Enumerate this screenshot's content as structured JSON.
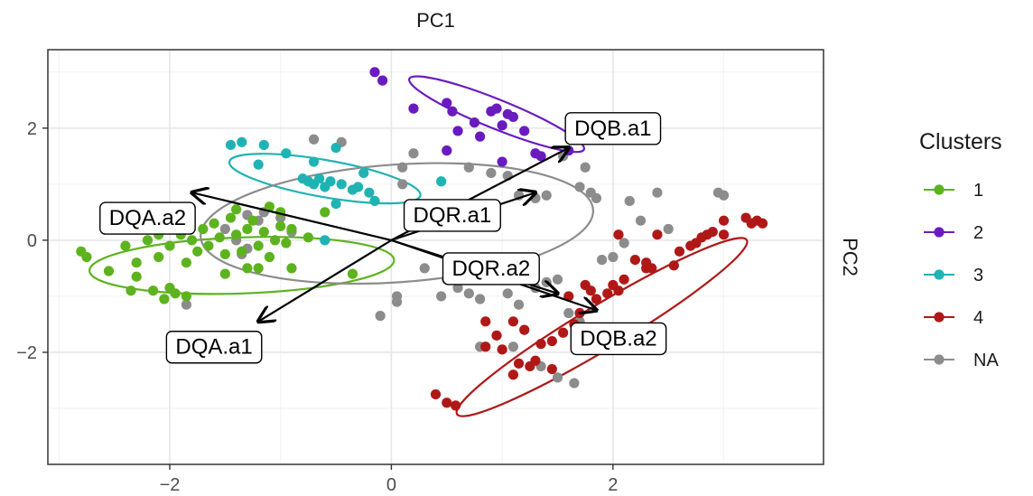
{
  "chart_data": {
    "type": "scatter",
    "title": "",
    "xlabel": "PC1",
    "ylabel": "PC2",
    "x_axis_position": "top",
    "y_axis_title_position": "right",
    "xlim": [
      -3.1,
      3.9
    ],
    "ylim": [
      -4.0,
      3.4
    ],
    "x_ticks": [
      -2,
      0,
      2
    ],
    "x_tick_labels": [
      "−2",
      "0",
      "2"
    ],
    "y_ticks": [
      -2,
      0,
      2
    ],
    "y_tick_labels": [
      "−2",
      "0",
      "2"
    ],
    "grid": true,
    "legend": {
      "title": "Clusters",
      "position": "right",
      "entries": [
        "1",
        "2",
        "3",
        "4",
        "NA"
      ]
    },
    "colors": {
      "1": "#5db31e",
      "2": "#6a1bc0",
      "3": "#1fb3b3",
      "4": "#b01818",
      "NA": "#8c8c8c"
    },
    "series": [
      {
        "name": "1",
        "points": [
          [
            -2.8,
            -0.2
          ],
          [
            -2.75,
            -0.3
          ],
          [
            -2.55,
            -0.55
          ],
          [
            -2.4,
            -0.1
          ],
          [
            -2.2,
            0.0
          ],
          [
            -2.1,
            0.1
          ],
          [
            -2.3,
            -0.4
          ],
          [
            -2.1,
            -0.3
          ],
          [
            -2.0,
            -0.1
          ],
          [
            -1.9,
            0.1
          ],
          [
            -1.85,
            -0.4
          ],
          [
            -1.8,
            0.0
          ],
          [
            -1.75,
            -0.2
          ],
          [
            -1.7,
            0.2
          ],
          [
            -1.65,
            -0.1
          ],
          [
            -1.6,
            0.3
          ],
          [
            -1.55,
            0.05
          ],
          [
            -1.5,
            -0.25
          ],
          [
            -1.45,
            0.4
          ],
          [
            -1.4,
            0.1
          ],
          [
            -1.35,
            -0.2
          ],
          [
            -1.3,
            0.2
          ],
          [
            -1.25,
            0.35
          ],
          [
            -1.2,
            -0.1
          ],
          [
            -1.15,
            0.15
          ],
          [
            -1.1,
            -0.3
          ],
          [
            -1.05,
            0.0
          ],
          [
            -1.0,
            0.25
          ],
          [
            -0.95,
            -0.05
          ],
          [
            -0.9,
            0.2
          ],
          [
            -1.0,
            0.5
          ],
          [
            -1.1,
            0.6
          ],
          [
            -1.4,
            0.55
          ],
          [
            -1.3,
            -0.5
          ],
          [
            -1.5,
            -0.6
          ],
          [
            -2.35,
            -0.9
          ],
          [
            -2.3,
            -0.65
          ],
          [
            -2.15,
            -0.9
          ],
          [
            -2.05,
            -1.05
          ],
          [
            -1.95,
            -0.95
          ],
          [
            -1.85,
            -1.0
          ],
          [
            -2.0,
            -0.85
          ],
          [
            -0.75,
            0.05
          ],
          [
            -0.35,
            -0.6
          ],
          [
            -0.9,
            -0.5
          ],
          [
            -1.2,
            -0.5
          ],
          [
            -0.6,
            0.5
          ]
        ]
      },
      {
        "name": "2",
        "points": [
          [
            -0.15,
            3.0
          ],
          [
            -0.08,
            2.85
          ],
          [
            0.2,
            2.35
          ],
          [
            0.5,
            2.45
          ],
          [
            0.55,
            2.3
          ],
          [
            0.6,
            1.95
          ],
          [
            0.75,
            2.1
          ],
          [
            0.9,
            2.3
          ],
          [
            0.95,
            2.35
          ],
          [
            1.0,
            2.05
          ],
          [
            1.05,
            2.25
          ],
          [
            1.1,
            2.2
          ],
          [
            1.2,
            1.95
          ],
          [
            0.8,
            1.85
          ],
          [
            1.3,
            1.55
          ],
          [
            1.35,
            1.5
          ],
          [
            1.6,
            1.6
          ],
          [
            0.5,
            1.6
          ],
          [
            1.0,
            1.4
          ]
        ]
      },
      {
        "name": "3",
        "points": [
          [
            -1.45,
            1.7
          ],
          [
            -1.35,
            1.75
          ],
          [
            -1.15,
            1.7
          ],
          [
            -0.95,
            1.55
          ],
          [
            -0.7,
            1.4
          ],
          [
            -0.5,
            1.65
          ],
          [
            -0.8,
            1.1
          ],
          [
            -0.75,
            1.05
          ],
          [
            -0.7,
            1.0
          ],
          [
            -0.65,
            1.1
          ],
          [
            -0.6,
            0.95
          ],
          [
            -0.55,
            1.05
          ],
          [
            -0.45,
            1.0
          ],
          [
            -0.35,
            0.9
          ],
          [
            -0.3,
            0.95
          ],
          [
            -0.25,
            1.2
          ],
          [
            -0.2,
            0.85
          ],
          [
            -0.15,
            0.7
          ],
          [
            0.45,
            1.05
          ],
          [
            -1.2,
            1.35
          ],
          [
            -0.5,
            0.65
          ],
          [
            -0.6,
            0.0
          ]
        ]
      },
      {
        "name": "4",
        "points": [
          [
            0.4,
            -2.75
          ],
          [
            0.5,
            -2.9
          ],
          [
            0.58,
            -2.95
          ],
          [
            0.85,
            -1.45
          ],
          [
            0.95,
            -1.7
          ],
          [
            1.0,
            -1.95
          ],
          [
            0.85,
            -1.9
          ],
          [
            1.1,
            -1.45
          ],
          [
            1.2,
            -1.6
          ],
          [
            1.25,
            -2.25
          ],
          [
            1.3,
            -2.15
          ],
          [
            1.35,
            -1.85
          ],
          [
            1.45,
            -1.8
          ],
          [
            1.55,
            -1.65
          ],
          [
            1.65,
            -1.5
          ],
          [
            1.7,
            -1.3
          ],
          [
            1.6,
            -1.0
          ],
          [
            1.75,
            -0.8
          ],
          [
            1.8,
            -0.9
          ],
          [
            1.85,
            -1.05
          ],
          [
            1.95,
            -0.95
          ],
          [
            2.0,
            -0.8
          ],
          [
            2.05,
            -0.9
          ],
          [
            2.1,
            -0.7
          ],
          [
            2.2,
            -0.35
          ],
          [
            2.3,
            -0.4
          ],
          [
            2.35,
            -0.5
          ],
          [
            2.6,
            -0.2
          ],
          [
            2.7,
            -0.1
          ],
          [
            2.8,
            0.05
          ],
          [
            2.85,
            0.1
          ],
          [
            2.9,
            0.15
          ],
          [
            3.0,
            0.1
          ],
          [
            3.2,
            0.4
          ],
          [
            3.25,
            0.3
          ],
          [
            3.3,
            0.35
          ],
          [
            3.35,
            0.3
          ],
          [
            3.0,
            0.35
          ],
          [
            2.05,
            0.1
          ],
          [
            1.1,
            -2.4
          ],
          [
            1.45,
            -2.3
          ],
          [
            1.15,
            -2.2
          ],
          [
            2.3,
            -0.5
          ],
          [
            2.55,
            -0.45
          ],
          [
            2.75,
            -0.05
          ],
          [
            2.4,
            0.1
          ]
        ]
      },
      {
        "name": "NA",
        "points": [
          [
            -0.7,
            1.8
          ],
          [
            -0.45,
            1.75
          ],
          [
            0.1,
            1.3
          ],
          [
            0.2,
            1.55
          ],
          [
            0.5,
            1.6
          ],
          [
            0.7,
            1.3
          ],
          [
            0.9,
            1.2
          ],
          [
            1.05,
            1.15
          ],
          [
            1.15,
            0.8
          ],
          [
            1.3,
            0.75
          ],
          [
            1.4,
            0.8
          ],
          [
            1.7,
            0.95
          ],
          [
            1.8,
            0.85
          ],
          [
            1.85,
            0.75
          ],
          [
            1.55,
            1.5
          ],
          [
            1.75,
            1.3
          ],
          [
            2.15,
            0.7
          ],
          [
            2.4,
            0.85
          ],
          [
            2.5,
            0.2
          ],
          [
            2.25,
            0.35
          ],
          [
            2.1,
            -0.05
          ],
          [
            2.0,
            -0.3
          ],
          [
            1.9,
            -0.35
          ],
          [
            2.95,
            0.85
          ],
          [
            3.0,
            0.8
          ],
          [
            -1.5,
            0.2
          ],
          [
            -1.4,
            0.0
          ],
          [
            -1.35,
            -0.25
          ],
          [
            -1.2,
            0.35
          ],
          [
            -1.0,
            0.4
          ],
          [
            -0.9,
            0.15
          ],
          [
            -1.3,
            0.45
          ],
          [
            -1.85,
            -1.15
          ],
          [
            -1.3,
            -0.15
          ],
          [
            -1.15,
            0.5
          ],
          [
            0.05,
            -1.0
          ],
          [
            0.05,
            -1.1
          ],
          [
            0.3,
            -0.5
          ],
          [
            0.45,
            -1.0
          ],
          [
            0.5,
            -0.7
          ],
          [
            0.6,
            -0.85
          ],
          [
            0.7,
            -0.95
          ],
          [
            0.8,
            -1.05
          ],
          [
            0.9,
            -0.6
          ],
          [
            1.05,
            -0.95
          ],
          [
            1.15,
            -1.15
          ],
          [
            -0.1,
            -1.35
          ],
          [
            1.3,
            -0.85
          ],
          [
            1.4,
            -0.75
          ],
          [
            1.5,
            -0.7
          ],
          [
            1.6,
            -1.3
          ],
          [
            1.7,
            -1.45
          ],
          [
            1.1,
            -1.9
          ],
          [
            1.35,
            -2.25
          ],
          [
            1.5,
            -2.45
          ],
          [
            1.65,
            -2.55
          ],
          [
            0.8,
            -1.9
          ],
          [
            0.3,
            0.35
          ],
          [
            0.1,
            1.0
          ]
        ]
      }
    ],
    "ellipses": [
      {
        "group": "1",
        "center": [
          -1.35,
          -0.45
        ],
        "axes": [
          2.75,
          1.0
        ],
        "rotation_deg": 2
      },
      {
        "group": "2",
        "center": [
          0.95,
          2.25
        ],
        "axes": [
          1.7,
          0.52
        ],
        "rotation_deg": -22
      },
      {
        "group": "3",
        "center": [
          -0.6,
          1.1
        ],
        "axes": [
          1.75,
          0.66
        ],
        "rotation_deg": -10
      },
      {
        "group": "4",
        "center": [
          1.9,
          -1.55
        ],
        "axes": [
          3.05,
          0.78
        ],
        "rotation_deg": 31
      },
      {
        "group": "NA",
        "center": [
          0.05,
          0.3
        ],
        "axes": [
          3.55,
          2.1
        ],
        "rotation_deg": 4
      }
    ],
    "loadings": [
      {
        "label": "DQB.a1",
        "x": 1.6,
        "y": 1.65,
        "label_x": 2.0,
        "label_y": 2.0
      },
      {
        "label": "DQA.a2",
        "x": -1.8,
        "y": 0.85,
        "label_x": -2.2,
        "label_y": 0.4
      },
      {
        "label": "DQR.a1",
        "x": 1.3,
        "y": 0.85,
        "label_x": 0.55,
        "label_y": 0.45
      },
      {
        "label": "DQR.a2",
        "x": 1.5,
        "y": -0.95,
        "label_x": 0.9,
        "label_y": -0.5
      },
      {
        "label": "DQB.a2",
        "x": 1.85,
        "y": -1.25,
        "label_x": 2.05,
        "label_y": -1.75
      },
      {
        "label": "DQA.a1",
        "x": -1.2,
        "y": -1.45,
        "label_x": -1.6,
        "label_y": -1.9
      }
    ]
  }
}
